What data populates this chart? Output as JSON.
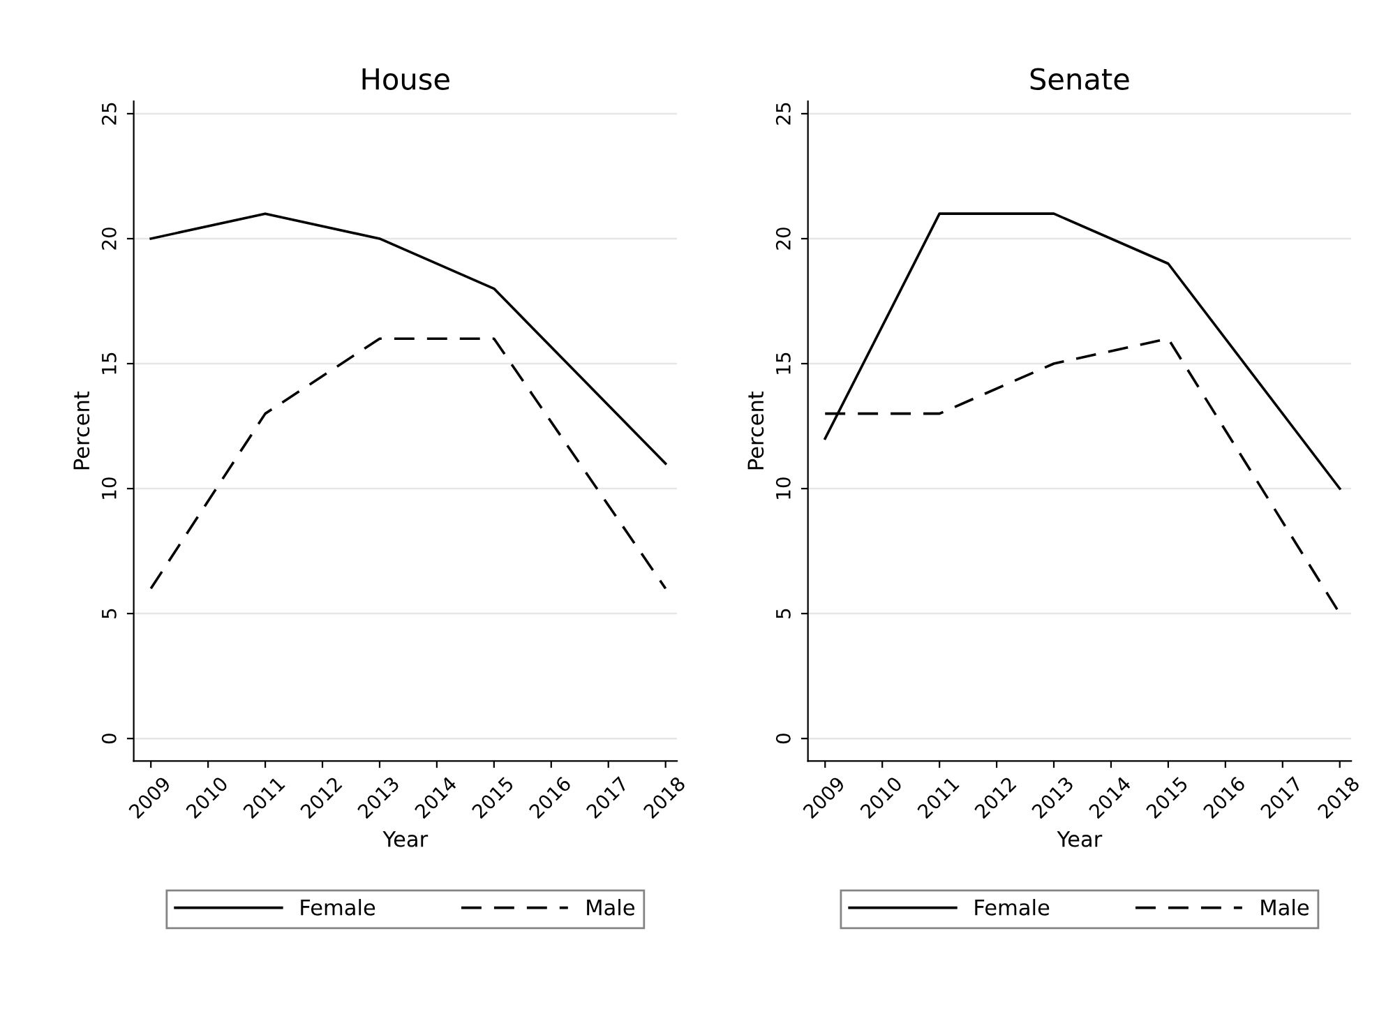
{
  "chart_data": [
    {
      "type": "line",
      "title": "House",
      "xlabel": "Year",
      "ylabel": "Percent",
      "xlim": [
        2008.7,
        2018.2
      ],
      "xticks": [
        2009,
        2010,
        2011,
        2012,
        2013,
        2014,
        2015,
        2016,
        2017,
        2018
      ],
      "ylim": [
        -0.9,
        25.5
      ],
      "yticks": [
        0,
        5,
        10,
        15,
        20,
        25
      ],
      "grid": "y",
      "legend": "bottom",
      "x": [
        2009,
        2011,
        2013,
        2015,
        2018
      ],
      "series": [
        {
          "name": "Female",
          "color": "#000000",
          "line_style": "solid",
          "values": [
            20,
            21,
            20,
            18,
            11
          ]
        },
        {
          "name": "Male",
          "color": "#000000",
          "line_style": "dashed",
          "values": [
            6,
            13,
            16,
            16,
            6
          ]
        }
      ]
    },
    {
      "type": "line",
      "title": "Senate",
      "xlabel": "Year",
      "ylabel": "Percent",
      "xlim": [
        2008.7,
        2018.2
      ],
      "xticks": [
        2009,
        2010,
        2011,
        2012,
        2013,
        2014,
        2015,
        2016,
        2017,
        2018
      ],
      "ylim": [
        -0.9,
        25.5
      ],
      "yticks": [
        0,
        5,
        10,
        15,
        20,
        25
      ],
      "grid": "y",
      "legend": "bottom",
      "x": [
        2009,
        2011,
        2013,
        2015,
        2018
      ],
      "series": [
        {
          "name": "Female",
          "color": "#000000",
          "line_style": "solid",
          "values": [
            12,
            21,
            21,
            19,
            10
          ]
        },
        {
          "name": "Male",
          "color": "#000000",
          "line_style": "dashed",
          "values": [
            13,
            13,
            15,
            16,
            5
          ]
        }
      ]
    }
  ]
}
